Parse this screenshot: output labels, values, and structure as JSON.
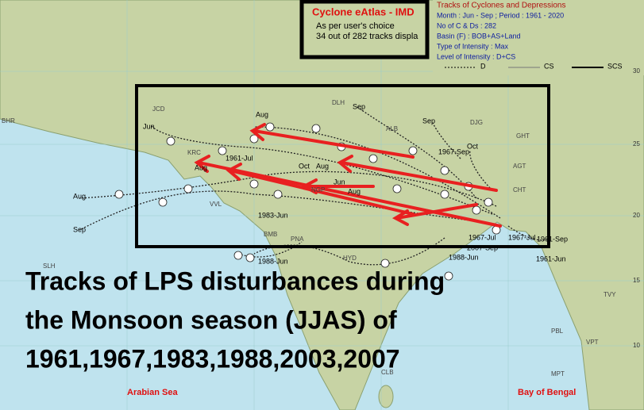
{
  "header": {
    "title": "Cyclone eAtlas - IMD",
    "lines": [
      "As per user's choice",
      "34 out of 282 tracks displa"
    ]
  },
  "legend": {
    "title": "Tracks of Cyclones and Depressions",
    "lines": [
      "Month  :  Jun - Sep ; Period  :  1961 - 2020",
      "No of C & Ds  :  282",
      "Basin (F)  :  BOB+AS+Land",
      "Type of Intensity  :  Max",
      "Level of Intensity  :  D+CS"
    ],
    "line_types": [
      "D",
      "CS",
      "SCS"
    ]
  },
  "caption": {
    "lines": [
      "Tracks of LPS disturbances during",
      "the Monsoon season (JJAS) of",
      "1961,1967,1983,1988,2003,2007"
    ]
  },
  "seas": [
    "Arabian Sea",
    "Bay of Bengal"
  ],
  "latitude_labels": [
    "30",
    "25",
    "20",
    "15",
    "10"
  ],
  "stations": [
    "BHR",
    "JCD",
    "DLH",
    "ALB",
    "DJG",
    "GHT",
    "AGT",
    "CHT",
    "NGP",
    "VVL",
    "BMB",
    "PNA",
    "HYD",
    "SLH",
    "TVY",
    "PBL",
    "VPT",
    "MPT",
    "CLB",
    "KRC"
  ],
  "track_labels": [
    "Jun",
    "Aug",
    "Sep",
    "Sep",
    "Aug",
    "Sep",
    "Aug",
    "1961-Jul",
    "Oct",
    "Aug",
    "Jun",
    "Aug",
    "1967-Sep",
    "Oct",
    "1983-Jun",
    "1988-Jun",
    "1967-Jul",
    "1967-Jul",
    "1961-Sep",
    "1961-Jun",
    "2007-Sep",
    "1988-Jun"
  ]
}
